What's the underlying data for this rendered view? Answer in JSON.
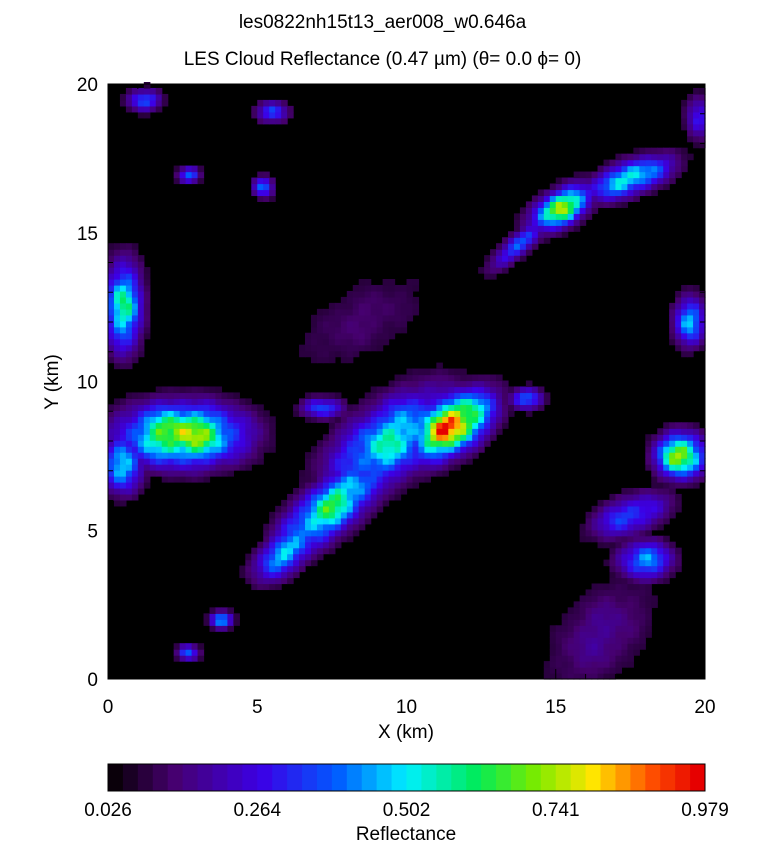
{
  "chart_data": {
    "type": "heatmap",
    "title": "les0822nh15t13_aer008_w0.646a",
    "subtitle": "LES Cloud Reflectance (0.47 µm) (θ=  0.0  ϕ=  0)",
    "xlabel": "X (km)",
    "ylabel": "Y (km)",
    "xlim": [
      0,
      20
    ],
    "ylim": [
      0,
      20
    ],
    "xticks": [
      "0",
      "5",
      "10",
      "15",
      "20"
    ],
    "yticks": [
      "0",
      "5",
      "10",
      "15",
      "20"
    ],
    "colorbar": {
      "label": "Reflectance",
      "min": 0.026,
      "max": 0.979,
      "ticks": [
        "0.026",
        "0.264",
        "0.502",
        "0.741",
        "0.979"
      ],
      "levels": 40
    },
    "cloud_features": [
      {
        "x": 11.5,
        "y": 8.5,
        "rx": 1.6,
        "ry": 0.9,
        "angle": 35,
        "peak": 0.97
      },
      {
        "x": 9.5,
        "y": 8.0,
        "rx": 2.6,
        "ry": 1.3,
        "angle": 35,
        "peak": 0.55
      },
      {
        "x": 7.5,
        "y": 5.8,
        "rx": 2.4,
        "ry": 0.9,
        "angle": 40,
        "peak": 0.62
      },
      {
        "x": 6.0,
        "y": 4.3,
        "rx": 1.4,
        "ry": 0.7,
        "angle": 40,
        "peak": 0.5
      },
      {
        "x": 2.5,
        "y": 8.2,
        "rx": 2.2,
        "ry": 1.1,
        "angle": 0,
        "peak": 0.78
      },
      {
        "x": 0.5,
        "y": 7.2,
        "rx": 0.7,
        "ry": 1.0,
        "angle": 0,
        "peak": 0.55
      },
      {
        "x": 0.5,
        "y": 12.5,
        "rx": 0.7,
        "ry": 1.6,
        "angle": 0,
        "peak": 0.58
      },
      {
        "x": 15.2,
        "y": 15.8,
        "rx": 1.2,
        "ry": 0.6,
        "angle": 30,
        "peak": 0.74
      },
      {
        "x": 17.5,
        "y": 16.8,
        "rx": 1.6,
        "ry": 0.6,
        "angle": 20,
        "peak": 0.55
      },
      {
        "x": 13.8,
        "y": 14.6,
        "rx": 1.4,
        "ry": 0.4,
        "angle": 40,
        "peak": 0.35
      },
      {
        "x": 19.2,
        "y": 7.5,
        "rx": 0.9,
        "ry": 0.8,
        "angle": 0,
        "peak": 0.76
      },
      {
        "x": 19.5,
        "y": 12.0,
        "rx": 0.6,
        "ry": 0.9,
        "angle": 0,
        "peak": 0.45
      },
      {
        "x": 18.0,
        "y": 4.0,
        "rx": 1.0,
        "ry": 0.7,
        "angle": 0,
        "peak": 0.45
      },
      {
        "x": 17.5,
        "y": 5.5,
        "rx": 1.5,
        "ry": 0.7,
        "angle": 20,
        "peak": 0.35
      },
      {
        "x": 3.8,
        "y": 2.0,
        "rx": 0.4,
        "ry": 0.3,
        "angle": 0,
        "peak": 0.5
      },
      {
        "x": 2.7,
        "y": 0.9,
        "rx": 0.4,
        "ry": 0.3,
        "angle": 0,
        "peak": 0.4
      },
      {
        "x": 1.2,
        "y": 19.4,
        "rx": 0.6,
        "ry": 0.4,
        "angle": 0,
        "peak": 0.4
      },
      {
        "x": 2.7,
        "y": 16.9,
        "rx": 0.4,
        "ry": 0.3,
        "angle": 0,
        "peak": 0.4
      },
      {
        "x": 5.2,
        "y": 16.5,
        "rx": 0.4,
        "ry": 0.4,
        "angle": 0,
        "peak": 0.38
      },
      {
        "x": 7.2,
        "y": 9.1,
        "rx": 0.8,
        "ry": 0.4,
        "angle": 0,
        "peak": 0.35
      },
      {
        "x": 14.0,
        "y": 9.4,
        "rx": 0.6,
        "ry": 0.4,
        "angle": 0,
        "peak": 0.4
      },
      {
        "x": 5.5,
        "y": 19.0,
        "rx": 0.6,
        "ry": 0.4,
        "angle": 0,
        "peak": 0.35
      },
      {
        "x": 19.8,
        "y": 18.8,
        "rx": 0.5,
        "ry": 0.8,
        "angle": 0,
        "peak": 0.3
      },
      {
        "x": 16.5,
        "y": 1.5,
        "rx": 2.5,
        "ry": 1.5,
        "angle": 50,
        "peak": 0.15
      },
      {
        "x": 8.5,
        "y": 12.0,
        "rx": 3.0,
        "ry": 1.5,
        "angle": 30,
        "peak": 0.1
      }
    ]
  }
}
